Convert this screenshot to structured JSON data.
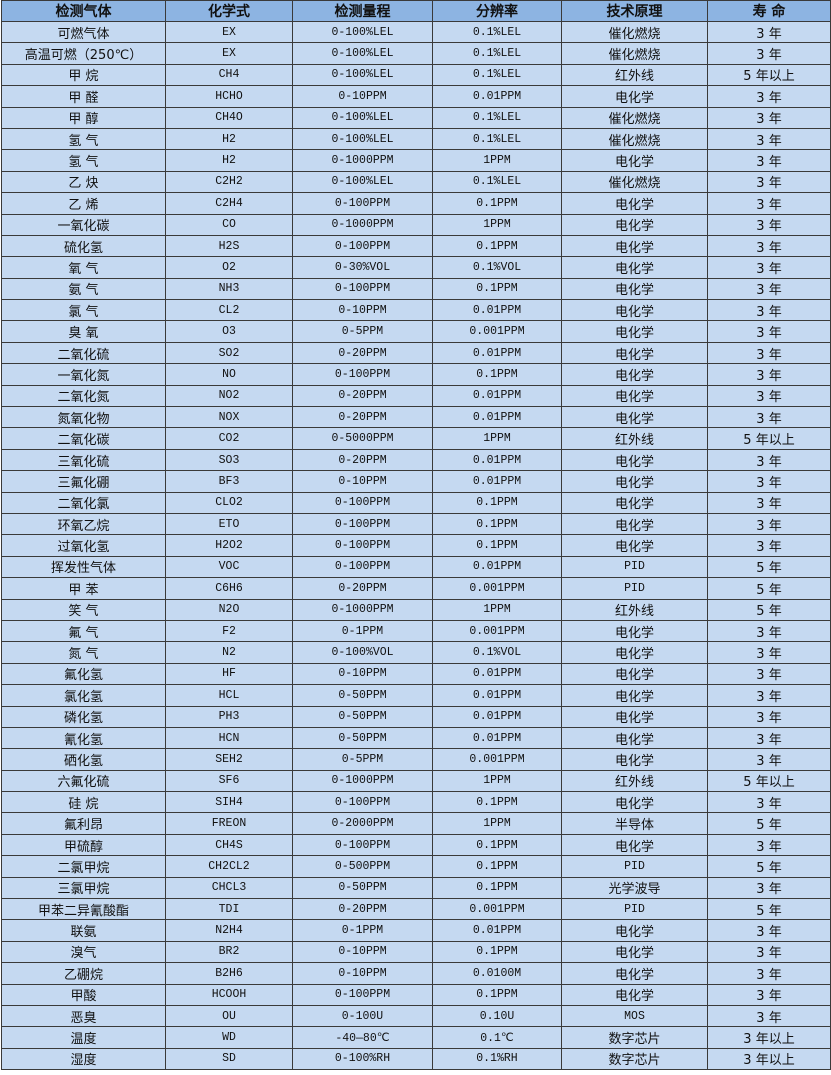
{
  "colors": {
    "header_bg": "#8DB4E2",
    "row_bg": "#C5D9F1",
    "border": "#3a3a3a"
  },
  "headers": [
    "检测气体",
    "化学式",
    "检测量程",
    "分辨率",
    "技术原理",
    "寿 命"
  ],
  "rows": [
    [
      "可燃气体",
      "EX",
      "0-100%LEL",
      "0.1%LEL",
      "催化燃烧",
      "3 年"
    ],
    [
      "高温可燃（250℃）",
      "EX",
      "0-100%LEL",
      "0.1%LEL",
      "催化燃烧",
      "3 年"
    ],
    [
      "甲 烷",
      "CH4",
      "0-100%LEL",
      "0.1%LEL",
      "红外线",
      "5 年以上"
    ],
    [
      "甲 醛",
      "HCHO",
      "0-10PPM",
      "0.01PPM",
      "电化学",
      "3 年"
    ],
    [
      "甲 醇",
      "CH4O",
      "0-100%LEL",
      "0.1%LEL",
      "催化燃烧",
      "3 年"
    ],
    [
      "氢 气",
      "H2",
      "0-100%LEL",
      "0.1%LEL",
      "催化燃烧",
      "3 年"
    ],
    [
      "氢 气",
      "H2",
      "0-1000PPM",
      "1PPM",
      "电化学",
      "3 年"
    ],
    [
      "乙 炔",
      "C2H2",
      "0-100%LEL",
      "0.1%LEL",
      "催化燃烧",
      "3 年"
    ],
    [
      "乙 烯",
      "C2H4",
      "0-100PPM",
      "0.1PPM",
      "电化学",
      "3 年"
    ],
    [
      "一氧化碳",
      "CO",
      "0-1000PPM",
      "1PPM",
      "电化学",
      "3 年"
    ],
    [
      "硫化氢",
      "H2S",
      "0-100PPM",
      "0.1PPM",
      "电化学",
      "3 年"
    ],
    [
      "氧 气",
      "O2",
      "0-30%VOL",
      "0.1%VOL",
      "电化学",
      "3 年"
    ],
    [
      "氨 气",
      "NH3",
      "0-100PPM",
      "0.1PPM",
      "电化学",
      "3 年"
    ],
    [
      "氯 气",
      "CL2",
      "0-10PPM",
      "0.01PPM",
      "电化学",
      "3 年"
    ],
    [
      "臭 氧",
      "O3",
      "0-5PPM",
      "0.001PPM",
      "电化学",
      "3 年"
    ],
    [
      "二氧化硫",
      "SO2",
      "0-20PPM",
      "0.01PPM",
      "电化学",
      "3 年"
    ],
    [
      "一氧化氮",
      "NO",
      "0-100PPM",
      "0.1PPM",
      "电化学",
      "3 年"
    ],
    [
      "二氧化氮",
      "NO2",
      "0-20PPM",
      "0.01PPM",
      "电化学",
      "3 年"
    ],
    [
      "氮氧化物",
      "NOX",
      "0-20PPM",
      "0.01PPM",
      "电化学",
      "3 年"
    ],
    [
      "二氧化碳",
      "CO2",
      "0-5000PPM",
      "1PPM",
      "红外线",
      "5 年以上"
    ],
    [
      "三氧化硫",
      "SO3",
      "0-20PPM",
      "0.01PPM",
      "电化学",
      "3 年"
    ],
    [
      "三氟化硼",
      "BF3",
      "0-10PPM",
      "0.01PPM",
      "电化学",
      "3 年"
    ],
    [
      "二氧化氯",
      "CLO2",
      "0-100PPM",
      "0.1PPM",
      "电化学",
      "3 年"
    ],
    [
      "环氧乙烷",
      "ETO",
      "0-100PPM",
      "0.1PPM",
      "电化学",
      "3 年"
    ],
    [
      "过氧化氢",
      "H2O2",
      "0-100PPM",
      "0.1PPM",
      "电化学",
      "3 年"
    ],
    [
      "挥发性气体",
      "VOC",
      "0-100PPM",
      "0.01PPM",
      "PID",
      "5 年"
    ],
    [
      "甲 苯",
      "C6H6",
      "0-20PPM",
      "0.001PPM",
      "PID",
      "5 年"
    ],
    [
      "笑 气",
      "N2O",
      "0-1000PPM",
      "1PPM",
      "红外线",
      "5 年"
    ],
    [
      "氟 气",
      "F2",
      "0-1PPM",
      "0.001PPM",
      "电化学",
      "3 年"
    ],
    [
      "氮 气",
      "N2",
      "0-100%VOL",
      "0.1%VOL",
      "电化学",
      "3 年"
    ],
    [
      "氟化氢",
      "HF",
      "0-10PPM",
      "0.01PPM",
      "电化学",
      "3 年"
    ],
    [
      "氯化氢",
      "HCL",
      "0-50PPM",
      "0.01PPM",
      "电化学",
      "3 年"
    ],
    [
      "磷化氢",
      "PH3",
      "0-50PPM",
      "0.01PPM",
      "电化学",
      "3 年"
    ],
    [
      "氰化氢",
      "HCN",
      "0-50PPM",
      "0.01PPM",
      "电化学",
      "3 年"
    ],
    [
      "硒化氢",
      "SEH2",
      "0-5PPM",
      "0.001PPM",
      "电化学",
      "3 年"
    ],
    [
      "六氟化硫",
      "SF6",
      "0-1000PPM",
      "1PPM",
      "红外线",
      "5 年以上"
    ],
    [
      "硅 烷",
      "SIH4",
      "0-100PPM",
      "0.1PPM",
      "电化学",
      "3 年"
    ],
    [
      "氟利昂",
      "FREON",
      "0-2000PPM",
      "1PPM",
      "半导体",
      "5 年"
    ],
    [
      "甲硫醇",
      "CH4S",
      "0-100PPM",
      "0.1PPM",
      "电化学",
      "3 年"
    ],
    [
      "二氯甲烷",
      "CH2CL2",
      "0-500PPM",
      "0.1PPM",
      "PID",
      "5 年"
    ],
    [
      "三氯甲烷",
      "CHCL3",
      "0-50PPM",
      "0.1PPM",
      "光学波导",
      "3 年"
    ],
    [
      "甲苯二异氰酸酯",
      "TDI",
      "0-20PPM",
      "0.001PPM",
      "PID",
      "5 年"
    ],
    [
      "联氨",
      "N2H4",
      "0-1PPM",
      "0.01PPM",
      "电化学",
      "3 年"
    ],
    [
      "溴气",
      "BR2",
      "0-10PPM",
      "0.1PPM",
      "电化学",
      "3 年"
    ],
    [
      "乙硼烷",
      "B2H6",
      "0-10PPM",
      "0.0100M",
      "电化学",
      "3 年"
    ],
    [
      "甲酸",
      "HCOOH",
      "0-100PPM",
      "0.1PPM",
      "电化学",
      "3 年"
    ],
    [
      "恶臭",
      "OU",
      "0-100U",
      "0.10U",
      "MOS",
      "3 年"
    ],
    [
      "温度",
      "WD",
      "-40—80℃",
      "0.1℃",
      "数字芯片",
      "3 年以上"
    ],
    [
      "湿度",
      "SD",
      "0-100%RH",
      "0.1%RH",
      "数字芯片",
      "3 年以上"
    ]
  ]
}
